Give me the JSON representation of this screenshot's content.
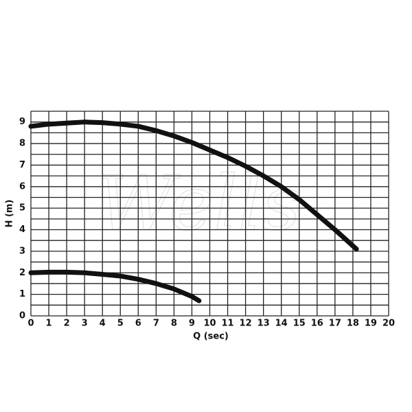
{
  "chart_data": {
    "type": "line",
    "watermark": "Wells",
    "x_label": "Q (sec)",
    "y_label": "H (m)",
    "series": [
      {
        "color": "#111111",
        "x": [
          0,
          1,
          2,
          3,
          4,
          5,
          6,
          7,
          8,
          9,
          10,
          11,
          12,
          13,
          14,
          15,
          16,
          17,
          18.2
        ],
        "values": [
          8.8,
          8.9,
          8.95,
          9,
          8.97,
          8.9,
          8.8,
          8.6,
          8.35,
          8.05,
          7.7,
          7.35,
          6.95,
          6.5,
          6,
          5.4,
          4.7,
          4,
          3.1
        ]
      },
      {
        "color": "#111111",
        "x": [
          0,
          1,
          2,
          3,
          4,
          5,
          6,
          7,
          8,
          9,
          9.4
        ],
        "values": [
          2,
          2.03,
          2.03,
          2,
          1.93,
          1.85,
          1.7,
          1.5,
          1.25,
          0.9,
          0.7
        ]
      }
    ],
    "xlim": [
      0,
      20
    ],
    "ylim": [
      0,
      9.5
    ],
    "xticks": [
      0,
      1,
      2,
      3,
      4,
      5,
      6,
      7,
      8,
      9,
      10,
      11,
      12,
      13,
      14,
      15,
      16,
      17,
      18,
      19,
      20
    ],
    "yticks": [
      0,
      1,
      2,
      3,
      4,
      5,
      6,
      7,
      8,
      9
    ],
    "ygrid": [
      0,
      0.5,
      1,
      1.5,
      2,
      2.5,
      3,
      3.5,
      4,
      4.5,
      5,
      5.5,
      6,
      6.5,
      7,
      7.5,
      8,
      8.5,
      9,
      9.5
    ],
    "grid": true
  }
}
